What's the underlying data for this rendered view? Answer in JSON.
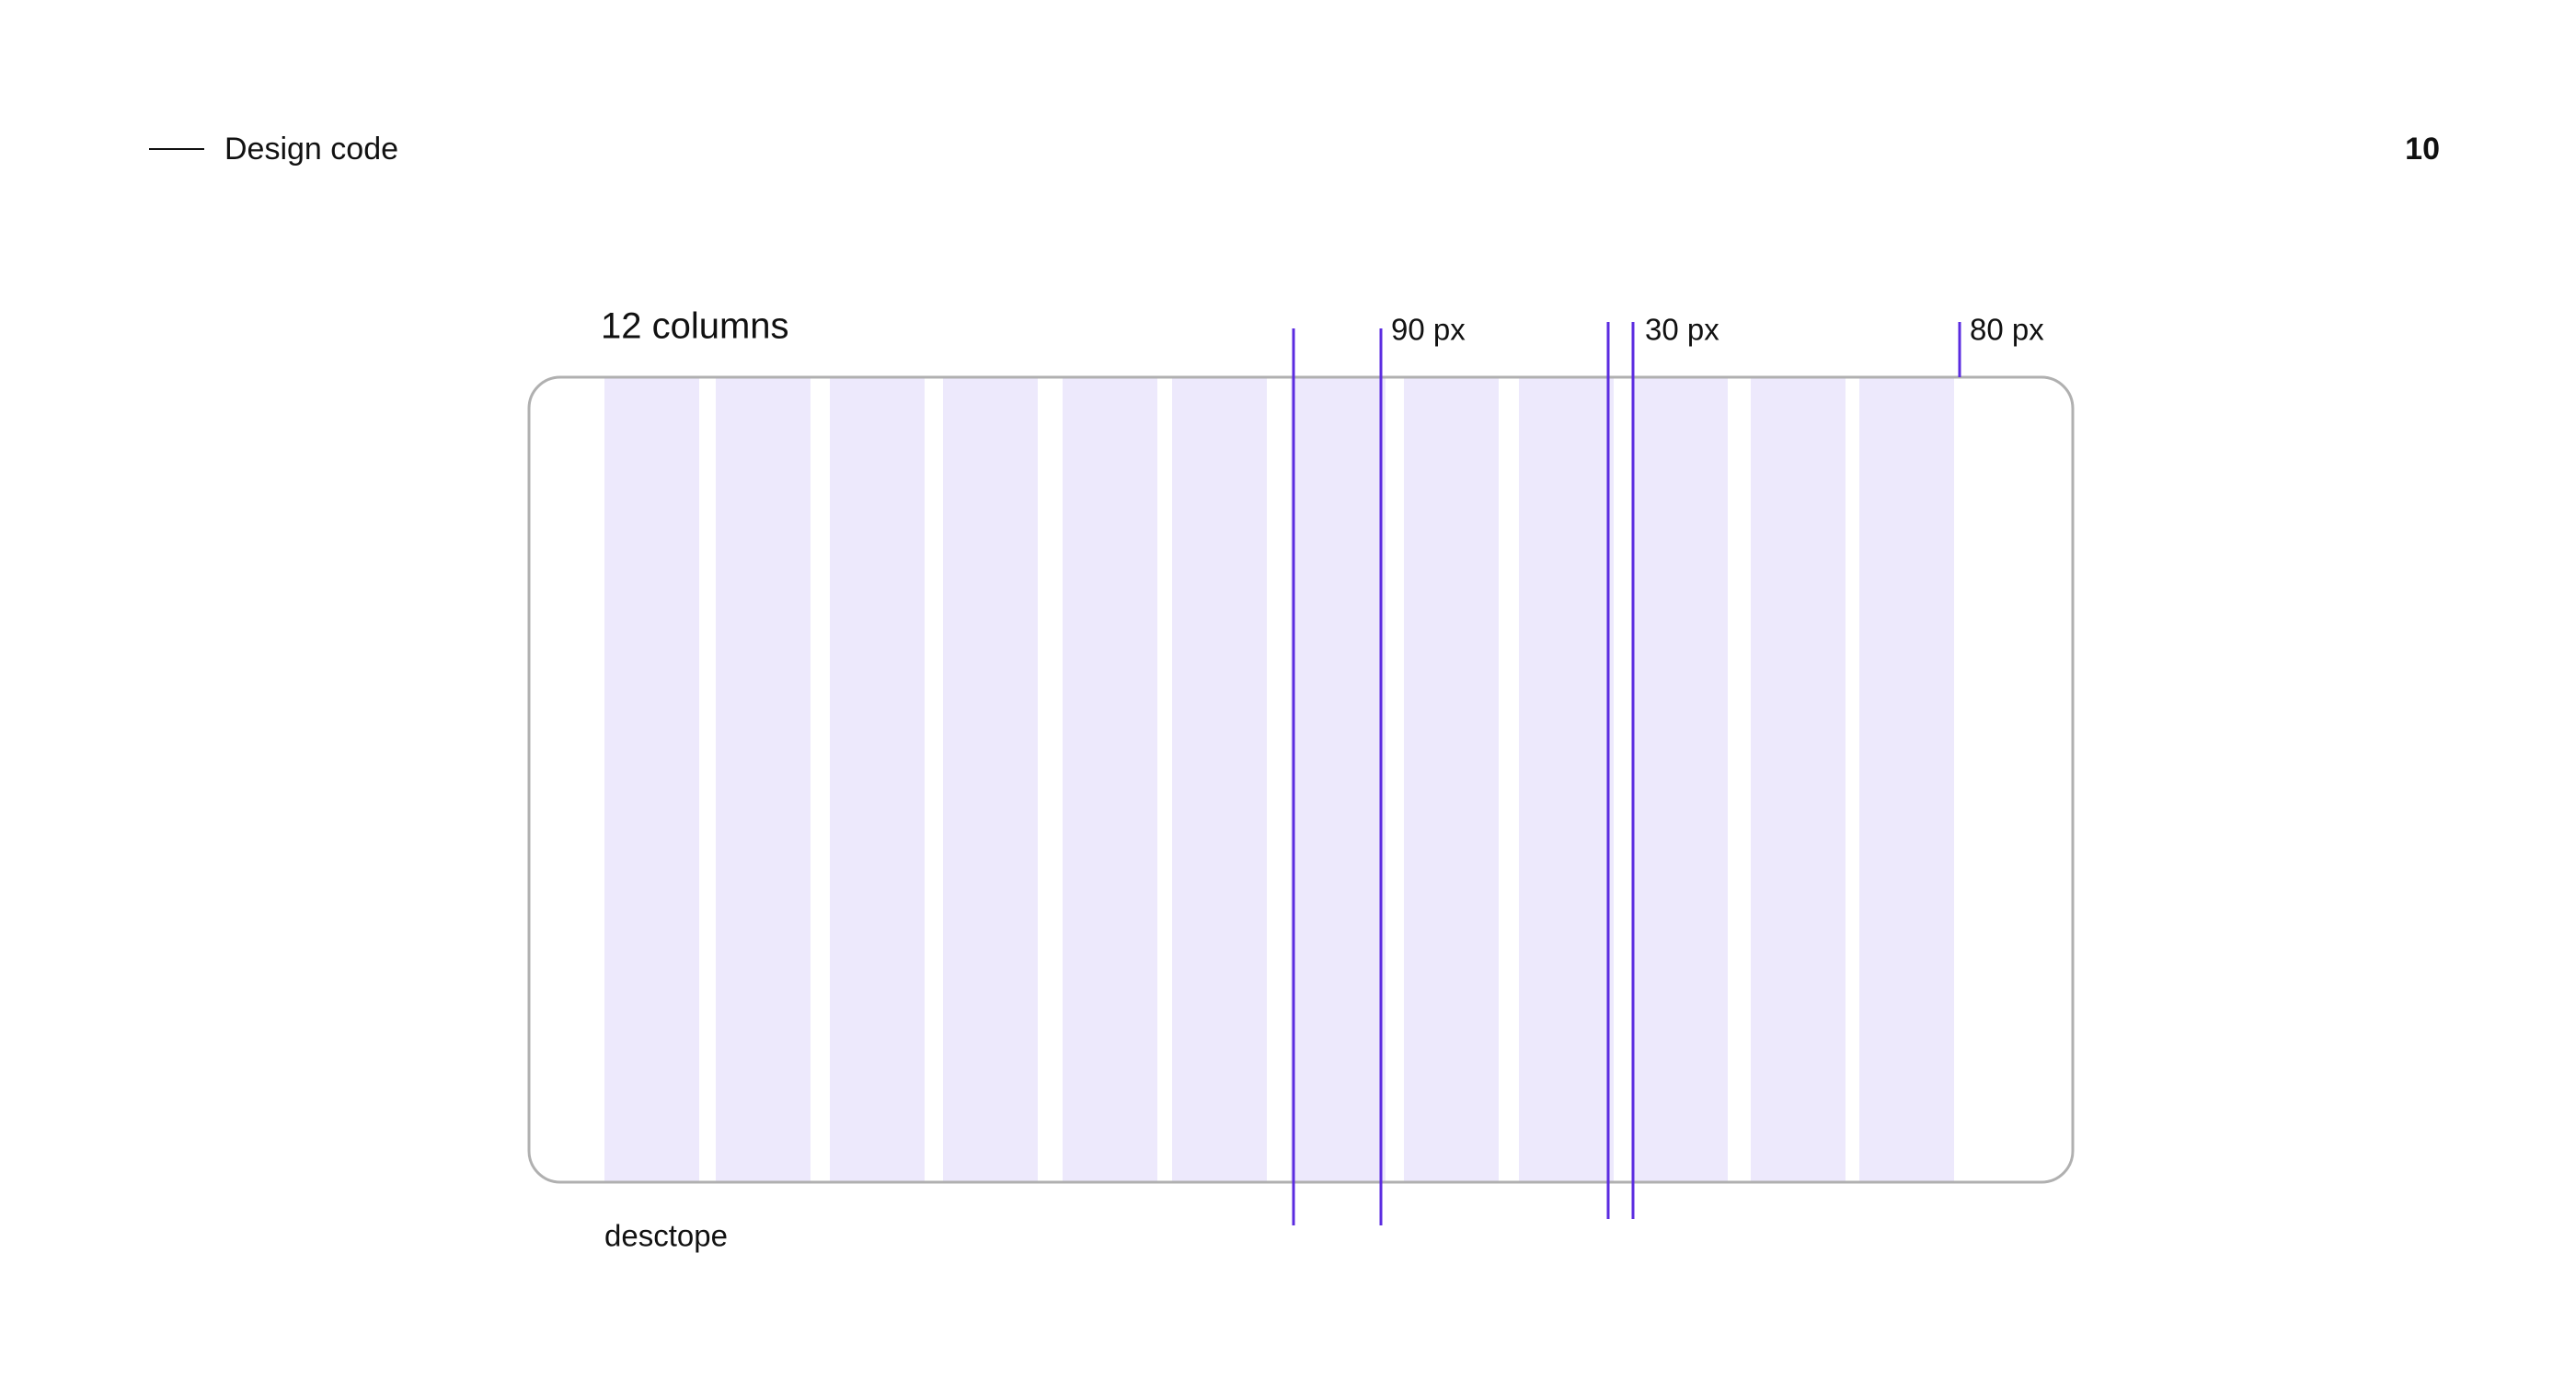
{
  "header": {
    "title": "Design code",
    "page_number": "10"
  },
  "grid": {
    "label": "12 columns",
    "caption": "desctope",
    "annotations": [
      "90 px",
      "30 px",
      "80 px"
    ]
  }
}
